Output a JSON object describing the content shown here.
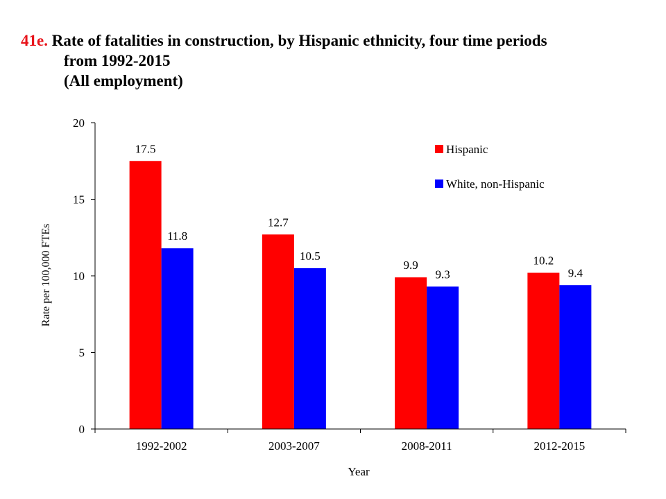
{
  "title": {
    "number": "41e.",
    "line1": "Rate of fatalities in construction, by Hispanic ethnicity, four time periods",
    "line2": "from 1992-2015",
    "line3": "(All employment)"
  },
  "chart_data": {
    "type": "bar",
    "categories": [
      "1992-2002",
      "2003-2007",
      "2008-2011",
      "2012-2015"
    ],
    "series": [
      {
        "name": "Hispanic",
        "color": "#ff0000",
        "values": [
          17.5,
          12.7,
          9.9,
          10.2
        ],
        "labels": [
          "17.5",
          "12.7",
          "9.9",
          "10.2"
        ]
      },
      {
        "name": "White, non-Hispanic",
        "color": "#0000ff",
        "values": [
          11.8,
          10.5,
          9.3,
          9.4
        ],
        "labels": [
          "11.8",
          "10.5",
          "9.3",
          "9.4"
        ]
      }
    ],
    "xlabel": "Year",
    "ylabel": "Rate per 100,000 FTEs",
    "ylim": [
      0,
      20
    ],
    "yticks": [
      "0",
      "5",
      "10",
      "15",
      "20"
    ],
    "grid": false,
    "legend_position": "top-right"
  }
}
